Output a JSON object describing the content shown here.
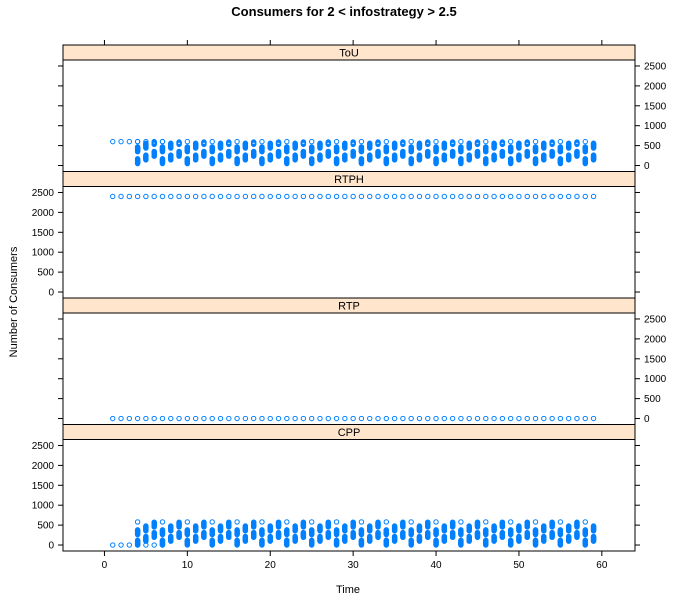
{
  "chart_data": {
    "type": "scatter",
    "title": "Consumers for 2 < infostrategy > 2.5",
    "xlabel": "Time",
    "ylabel": "Number of Consumers",
    "xlim": [
      -5,
      64
    ],
    "ylim": [
      -150,
      2650
    ],
    "x_ticks": [
      0,
      10,
      20,
      30,
      40,
      50,
      60
    ],
    "y_ticks": [
      0,
      500,
      1000,
      1500,
      2000,
      2500
    ],
    "grid": false,
    "marker": "open-circle",
    "marker_color": "#0080ff",
    "strip_color": "#ffe5cc",
    "x_range": [
      1,
      59
    ],
    "panels": [
      {
        "name": "ToU",
        "y_axis_side": "right",
        "y_tick_labels": [
          "0",
          "500",
          "1000",
          "1500",
          "2000",
          "2500"
        ],
        "series": [
          {
            "pattern": "constant",
            "x_from": 1,
            "x_to": 7,
            "value": 600
          },
          {
            "pattern": "cycling-bands",
            "x_from": 4,
            "x_to": 59,
            "min": 50,
            "max": 600,
            "period": 3,
            "band_width": 120
          }
        ]
      },
      {
        "name": "RTPH",
        "y_axis_side": "left",
        "y_tick_labels": [
          "0",
          "500",
          "1000",
          "1500",
          "2000",
          "2500"
        ],
        "series": [
          {
            "pattern": "constant",
            "x_from": 1,
            "x_to": 59,
            "value": 2400
          }
        ]
      },
      {
        "name": "RTP",
        "y_axis_side": "right",
        "y_tick_labels": [
          "0",
          "500",
          "1000",
          "1500",
          "2000",
          "2500"
        ],
        "series": [
          {
            "pattern": "constant",
            "x_from": 1,
            "x_to": 59,
            "value": 0
          }
        ]
      },
      {
        "name": "CPP",
        "y_axis_side": "left",
        "y_tick_labels": [
          "0",
          "500",
          "1000",
          "1500",
          "2000",
          "2500"
        ],
        "series": [
          {
            "pattern": "constant",
            "x_from": 1,
            "x_to": 7,
            "value": 0
          },
          {
            "pattern": "cycling-bands",
            "x_from": 4,
            "x_to": 59,
            "min": 0,
            "max": 580,
            "period": 3,
            "band_width": 120
          }
        ]
      }
    ]
  }
}
